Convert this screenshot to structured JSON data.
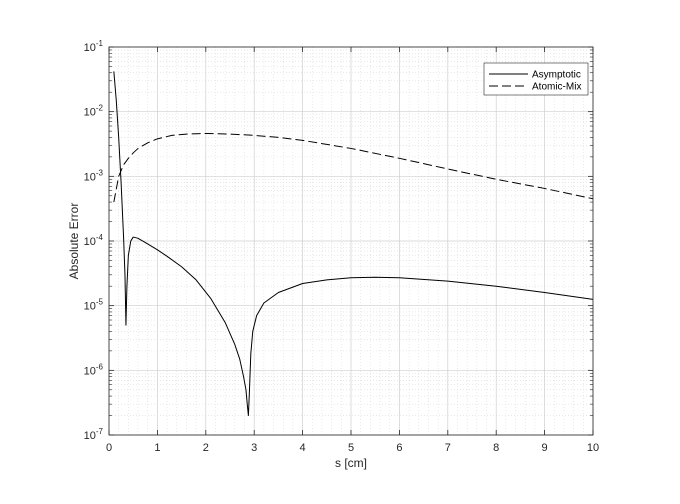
{
  "chart_data": {
    "type": "line",
    "title": "",
    "xlabel": "s [cm]",
    "ylabel": "Absolute Error",
    "x_scale": "linear",
    "y_scale": "log",
    "xlim": [
      0,
      10
    ],
    "ylim": [
      1e-07,
      0.1
    ],
    "x_ticks": [
      0,
      1,
      2,
      3,
      4,
      5,
      6,
      7,
      8,
      9,
      10
    ],
    "x_tick_labels": [
      "0",
      "1",
      "2",
      "3",
      "4",
      "5",
      "6",
      "7",
      "8",
      "9",
      "10"
    ],
    "y_ticks": [
      1e-07,
      1e-06,
      1e-05,
      0.0001,
      0.001,
      0.01,
      0.1
    ],
    "y_tick_labels": [
      {
        "base": "10",
        "exp": "-7"
      },
      {
        "base": "10",
        "exp": "-6"
      },
      {
        "base": "10",
        "exp": "-5"
      },
      {
        "base": "10",
        "exp": "-4"
      },
      {
        "base": "10",
        "exp": "-3"
      },
      {
        "base": "10",
        "exp": "-2"
      },
      {
        "base": "10",
        "exp": "-1"
      }
    ],
    "grid": true,
    "minor_grid": true,
    "legend_position": "top-right",
    "series": [
      {
        "name": "Asymptotic",
        "style": "solid",
        "color": "#000000",
        "x": [
          0.1,
          0.15,
          0.2,
          0.25,
          0.3,
          0.33,
          0.35,
          0.37,
          0.4,
          0.45,
          0.5,
          0.6,
          0.8,
          1.0,
          1.2,
          1.5,
          1.8,
          2.1,
          2.4,
          2.6,
          2.7,
          2.78,
          2.83,
          2.86,
          2.88,
          2.9,
          2.93,
          2.97,
          3.05,
          3.2,
          3.5,
          4.0,
          4.5,
          5.0,
          5.5,
          6.0,
          7.0,
          8.0,
          9.0,
          10.0
        ],
        "y": [
          0.042,
          0.015,
          0.004,
          0.0008,
          0.00012,
          3e-05,
          5e-06,
          2e-05,
          6e-05,
          0.0001,
          0.000115,
          0.00011,
          9e-05,
          7.3e-05,
          5.8e-05,
          4e-05,
          2.5e-05,
          1.3e-05,
          5.5e-06,
          2.5e-06,
          1.5e-06,
          8e-07,
          5e-07,
          2.8e-07,
          2e-07,
          4.5e-07,
          1.8e-06,
          4e-06,
          7e-06,
          1.1e-05,
          1.6e-05,
          2.2e-05,
          2.5e-05,
          2.7e-05,
          2.75e-05,
          2.7e-05,
          2.4e-05,
          2e-05,
          1.6e-05,
          1.25e-05
        ]
      },
      {
        "name": "Atomic-Mix",
        "style": "dashed",
        "color": "#000000",
        "x": [
          0.1,
          0.2,
          0.3,
          0.4,
          0.5,
          0.6,
          0.8,
          1.0,
          1.3,
          1.6,
          2.0,
          2.5,
          3.0,
          3.5,
          4.0,
          5.0,
          6.0,
          7.0,
          8.0,
          9.0,
          10.0
        ],
        "y": [
          0.0004,
          0.001,
          0.0015,
          0.0019,
          0.0023,
          0.0027,
          0.0033,
          0.0038,
          0.0043,
          0.0045,
          0.0046,
          0.0045,
          0.0043,
          0.004,
          0.0036,
          0.0027,
          0.0019,
          0.0013,
          0.0009,
          0.00065,
          0.00045
        ]
      }
    ]
  }
}
